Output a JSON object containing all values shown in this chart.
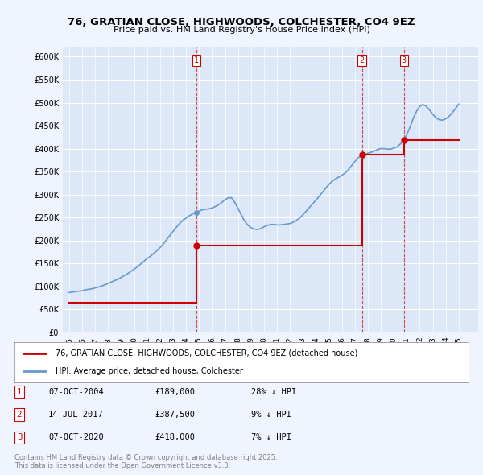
{
  "title": "76, GRATIAN CLOSE, HIGHWOODS, COLCHESTER, CO4 9EZ",
  "subtitle": "Price paid vs. HM Land Registry's House Price Index (HPI)",
  "ylabel": "",
  "background_color": "#f0f4ff",
  "plot_bg": "#dce8f8",
  "sale_color": "#cc0000",
  "hpi_color": "#6699cc",
  "sale_dates": [
    2004.77,
    2017.54,
    2020.77
  ],
  "sale_prices": [
    189000,
    387500,
    418000
  ],
  "sale_labels": [
    "1",
    "2",
    "3"
  ],
  "transaction_info": [
    {
      "label": "1",
      "date": "07-OCT-2004",
      "price": "£189,000",
      "note": "28% ↓ HPI"
    },
    {
      "label": "2",
      "date": "14-JUL-2017",
      "price": "£387,500",
      "note": "9% ↓ HPI"
    },
    {
      "label": "3",
      "date": "07-OCT-2020",
      "price": "£418,000",
      "note": "7% ↓ HPI"
    }
  ],
  "legend_sale": "76, GRATIAN CLOSE, HIGHWOODS, COLCHESTER, CO4 9EZ (detached house)",
  "legend_hpi": "HPI: Average price, detached house, Colchester",
  "footnote": "Contains HM Land Registry data © Crown copyright and database right 2025.\nThis data is licensed under the Open Government Licence v3.0.",
  "ylim": [
    0,
    620000
  ],
  "yticks": [
    0,
    50000,
    100000,
    150000,
    200000,
    250000,
    300000,
    350000,
    400000,
    450000,
    500000,
    550000,
    600000
  ],
  "ytick_labels": [
    "£0",
    "£50K",
    "£100K",
    "£150K",
    "£200K",
    "£250K",
    "£300K",
    "£350K",
    "£400K",
    "£450K",
    "£500K",
    "£550K",
    "£600K"
  ],
  "xlim_start": 1994.5,
  "xlim_end": 2026.5,
  "xticks": [
    1995,
    1996,
    1997,
    1998,
    1999,
    2000,
    2001,
    2002,
    2003,
    2004,
    2005,
    2006,
    2007,
    2008,
    2009,
    2010,
    2011,
    2012,
    2013,
    2014,
    2015,
    2016,
    2017,
    2018,
    2019,
    2020,
    2021,
    2022,
    2023,
    2024,
    2025
  ],
  "hpi_x": [
    1995,
    1995.25,
    1995.5,
    1995.75,
    1996,
    1996.25,
    1996.5,
    1996.75,
    1997,
    1997.25,
    1997.5,
    1997.75,
    1998,
    1998.25,
    1998.5,
    1998.75,
    1999,
    1999.25,
    1999.5,
    1999.75,
    2000,
    2000.25,
    2000.5,
    2000.75,
    2001,
    2001.25,
    2001.5,
    2001.75,
    2002,
    2002.25,
    2002.5,
    2002.75,
    2003,
    2003.25,
    2003.5,
    2003.75,
    2004,
    2004.25,
    2004.5,
    2004.75,
    2005,
    2005.25,
    2005.5,
    2005.75,
    2006,
    2006.25,
    2006.5,
    2006.75,
    2007,
    2007.25,
    2007.5,
    2007.75,
    2008,
    2008.25,
    2008.5,
    2008.75,
    2009,
    2009.25,
    2009.5,
    2009.75,
    2010,
    2010.25,
    2010.5,
    2010.75,
    2011,
    2011.25,
    2011.5,
    2011.75,
    2012,
    2012.25,
    2012.5,
    2012.75,
    2013,
    2013.25,
    2013.5,
    2013.75,
    2014,
    2014.25,
    2014.5,
    2014.75,
    2015,
    2015.25,
    2015.5,
    2015.75,
    2016,
    2016.25,
    2016.5,
    2016.75,
    2017,
    2017.25,
    2017.5,
    2017.75,
    2018,
    2018.25,
    2018.5,
    2018.75,
    2019,
    2019.25,
    2019.5,
    2019.75,
    2020,
    2020.25,
    2020.5,
    2020.75,
    2021,
    2021.25,
    2021.5,
    2021.75,
    2022,
    2022.25,
    2022.5,
    2022.75,
    2023,
    2023.25,
    2023.5,
    2023.75,
    2024,
    2024.25,
    2024.5,
    2024.75,
    2025
  ],
  "hpi_y": [
    87000,
    88000,
    89000,
    90000,
    91000,
    93000,
    94000,
    95000,
    97000,
    99000,
    101000,
    104000,
    107000,
    110000,
    113000,
    116000,
    120000,
    124000,
    128000,
    133000,
    138000,
    143000,
    149000,
    155000,
    161000,
    166000,
    172000,
    178000,
    185000,
    193000,
    202000,
    211000,
    220000,
    229000,
    237000,
    244000,
    249000,
    254000,
    258000,
    261000,
    264000,
    267000,
    268000,
    269000,
    271000,
    274000,
    278000,
    283000,
    289000,
    293000,
    293000,
    283000,
    270000,
    256000,
    243000,
    234000,
    228000,
    225000,
    224000,
    226000,
    230000,
    233000,
    235000,
    235000,
    234000,
    234000,
    235000,
    236000,
    237000,
    240000,
    244000,
    249000,
    256000,
    264000,
    272000,
    280000,
    288000,
    296000,
    305000,
    314000,
    322000,
    329000,
    334000,
    338000,
    342000,
    347000,
    354000,
    363000,
    372000,
    380000,
    385000,
    388000,
    390000,
    392000,
    395000,
    398000,
    400000,
    400000,
    399000,
    399000,
    401000,
    404000,
    410000,
    418000,
    430000,
    447000,
    466000,
    481000,
    492000,
    496000,
    492000,
    484000,
    475000,
    467000,
    463000,
    462000,
    465000,
    470000,
    478000,
    487000,
    497000
  ],
  "sale_line_x": [
    1995,
    2004.77,
    2004.77,
    2017.54,
    2017.54,
    2020.77,
    2020.77,
    2025
  ],
  "sale_line_y": [
    65000,
    65000,
    189000,
    189000,
    387500,
    387500,
    418000,
    418000
  ]
}
